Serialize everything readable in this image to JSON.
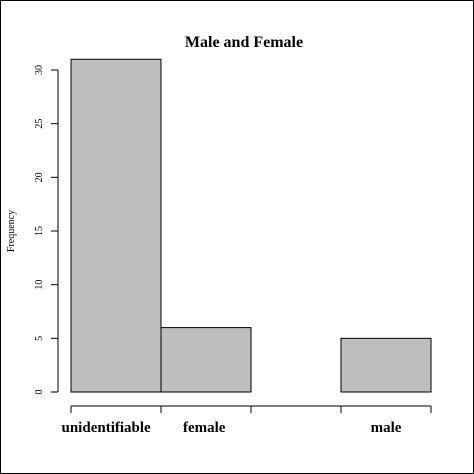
{
  "chart_data": {
    "type": "bar",
    "title": "Male and Female",
    "xlabel": "",
    "ylabel": "Frequency",
    "categories": [
      "unidentifiable",
      "female",
      "",
      "male"
    ],
    "values": [
      31,
      6,
      0,
      5
    ],
    "ylim": [
      0,
      30
    ],
    "y_ticks": [
      0,
      5,
      10,
      15,
      20,
      25,
      30
    ],
    "grid": false,
    "legend": "none",
    "bar_color": "#bebebe",
    "edge_color": "#000000"
  }
}
